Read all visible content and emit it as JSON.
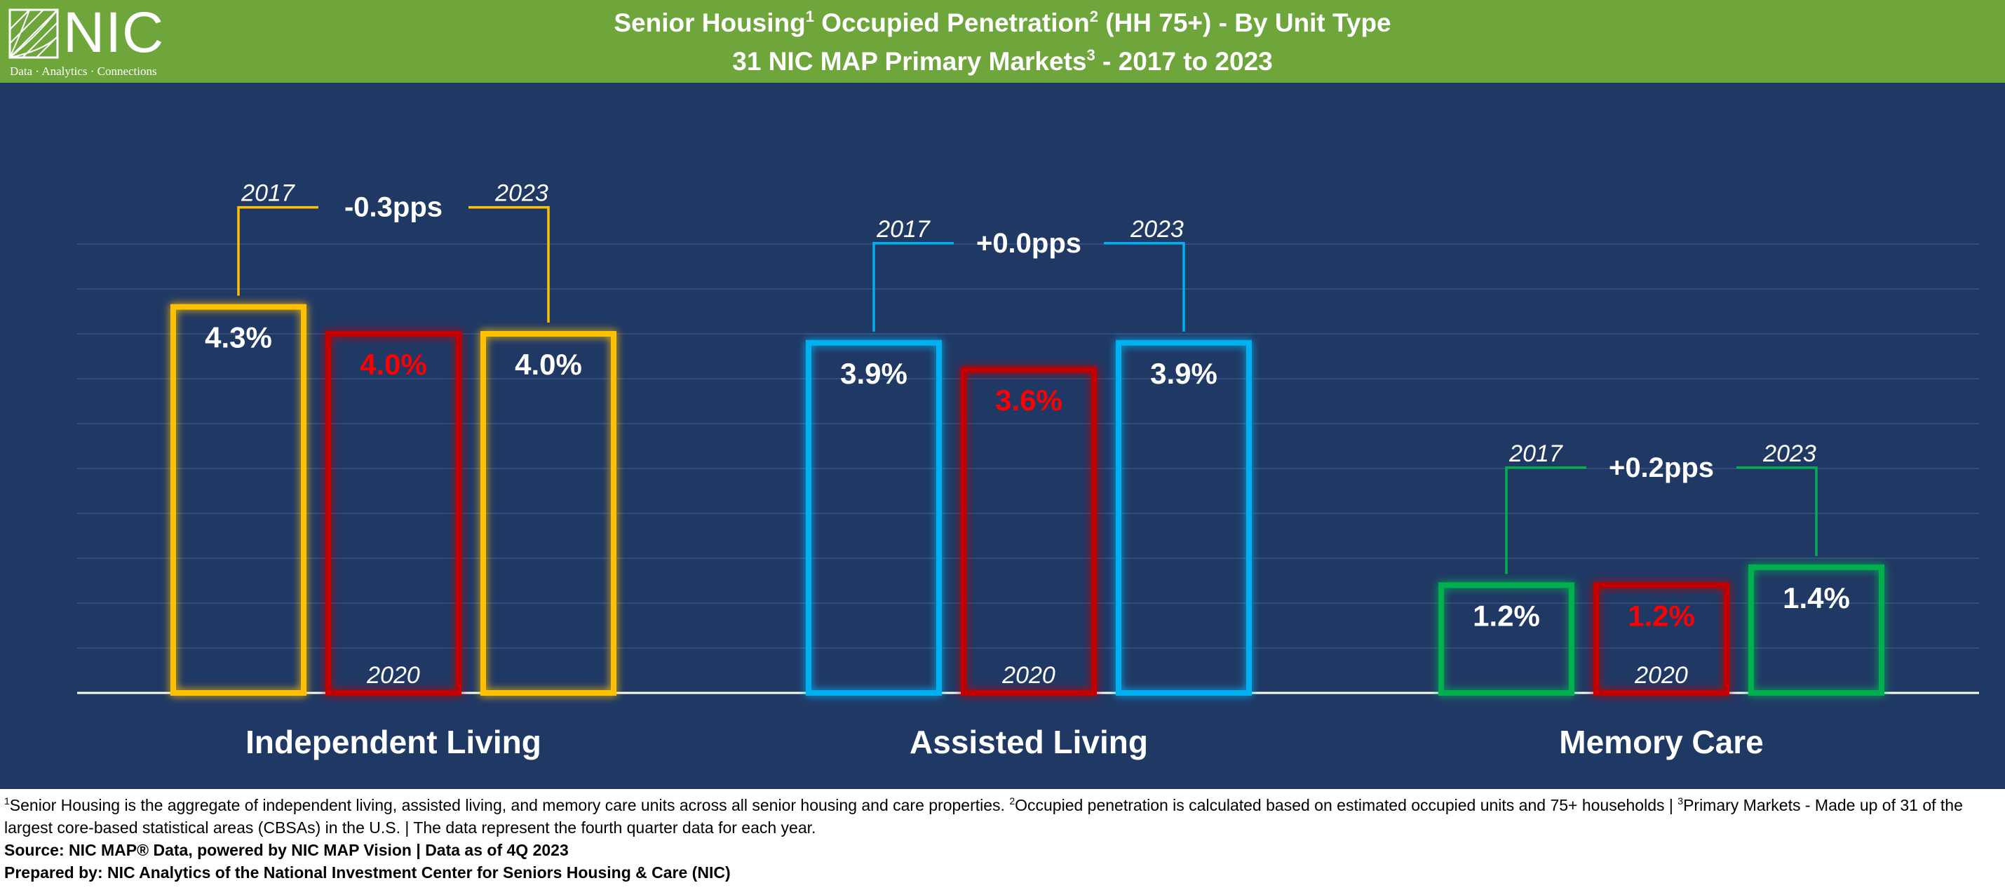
{
  "header": {
    "logo_text": "NIC",
    "logo_tagline": "Data · Analytics · Connections",
    "title_line1_part1": "Senior Housing",
    "title_line1_sup1": "1",
    "title_line1_part2": " Occupied Penetration",
    "title_line1_sup2": "2",
    "title_line1_part3": " (HH 75+) - By Unit Type",
    "title_line2_part1": "31 NIC MAP Primary Markets",
    "title_line2_sup": "3",
    "title_line2_part2": " - 2017 to 2023"
  },
  "chart_data": {
    "type": "bar",
    "title": "Senior Housing¹ Occupied Penetration² (HH 75+) - By Unit Type",
    "subtitle": "31 NIC MAP Primary Markets³ - 2017 to 2023",
    "categories": [
      "Independent Living",
      "Assisted Living",
      "Memory Care"
    ],
    "series": [
      {
        "name": "2017",
        "values": [
          4.3,
          3.9,
          1.2
        ],
        "labels": [
          "4.3%",
          "3.9%",
          "1.2%"
        ]
      },
      {
        "name": "2020",
        "values": [
          4.0,
          3.6,
          1.2
        ],
        "labels": [
          "4.0%",
          "3.6%",
          "1.2%"
        ]
      },
      {
        "name": "2023",
        "values": [
          4.0,
          3.9,
          1.4
        ],
        "labels": [
          "4.0%",
          "3.9%",
          "1.4%"
        ]
      }
    ],
    "changes": [
      "-0.3pps",
      "+0.0pps",
      "+0.2pps"
    ],
    "ylim": [
      0,
      5.0
    ],
    "grid": true,
    "colors": {
      "independent_living": "#ffc000",
      "assisted_living": "#00b0f0",
      "memory_care": "#00b050",
      "year_2020": "#c00000",
      "label_2020": "#ff0000",
      "background": "#203864",
      "header": "#6ea63c"
    }
  },
  "footnotes": {
    "line1_sup1": "1",
    "line1_text1": "Senior Housing is the aggregate of independent living, assisted living, and memory care units across all senior housing and care properties. ",
    "line1_sup2": "2",
    "line1_text2": "Occupied penetration is calculated based on estimated occupied units and 75+ households | ",
    "line1_sup3": "3",
    "line1_text3": "Primary Markets - Made up of 31 of the largest core-based statistical areas (CBSAs) in the U.S. | The data represent the fourth quarter data for each year.",
    "source": "Source: NIC MAP® Data, powered by NIC MAP Vision | Data as of 4Q 2023",
    "prepared_by": "Prepared by: NIC Analytics of the National Investment Center for Seniors Housing & Care (NIC)"
  }
}
